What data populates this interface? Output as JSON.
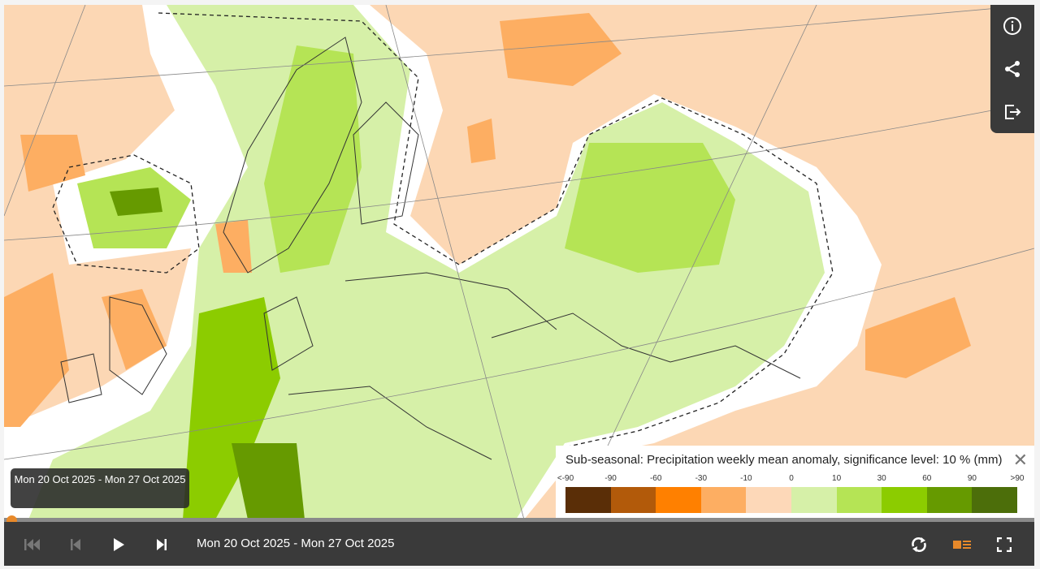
{
  "legend": {
    "title": "Sub-seasonal: Precipitation weekly mean anomaly, significance level: 10 % (mm)",
    "ticks": [
      "<-90",
      "-90",
      "-60",
      "-30",
      "-10",
      "0",
      "10",
      "30",
      "60",
      "90",
      ">90"
    ],
    "colors": [
      "#5a2e07",
      "#b25a0a",
      "#ff8000",
      "#fdae62",
      "#fdd8b8",
      "#d6f0a8",
      "#b5e455",
      "#8ccc00",
      "#669a00",
      "#4c6e0a"
    ]
  },
  "tooltip": {
    "text": "Mon 20 Oct 2025 - Mon 27 Oct 2025"
  },
  "player": {
    "date": "Mon 20 Oct 2025 - Mon 27 Oct 2025",
    "progress": 0,
    "accent": "#e8892a"
  },
  "icons": [
    "info-icon",
    "share-icon",
    "export-icon",
    "first-icon",
    "previous-icon",
    "play-icon",
    "next-icon",
    "loop-icon",
    "legend-toggle-icon",
    "fullscreen-icon"
  ]
}
